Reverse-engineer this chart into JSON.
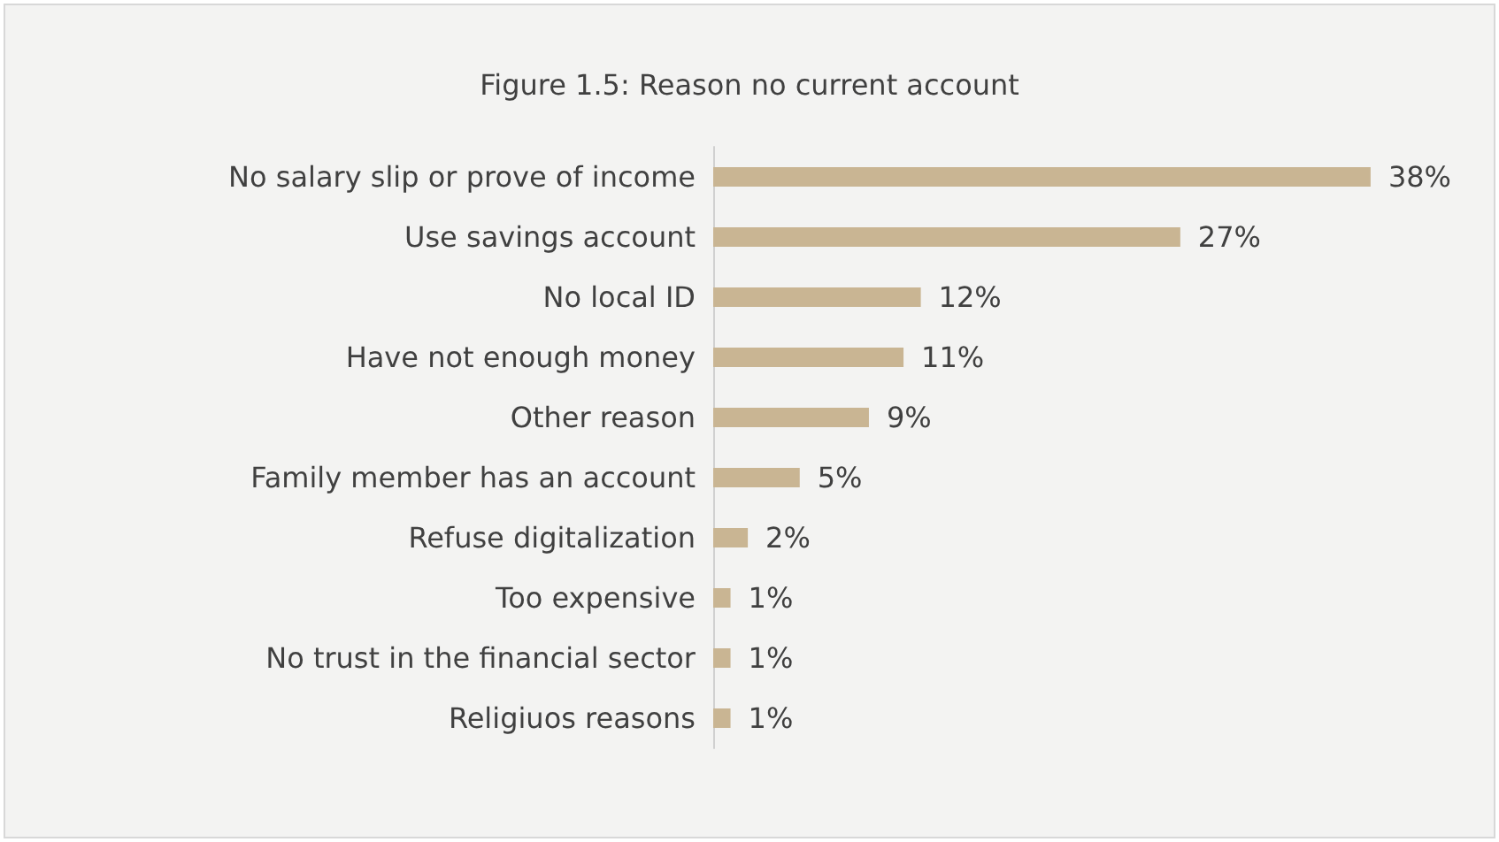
{
  "chart_data": {
    "type": "bar",
    "orientation": "horizontal",
    "title": "Figure 1.5: Reason no current account",
    "categories": [
      "No salary slip or prove of income",
      "Use savings account",
      "No local ID",
      "Have not enough money",
      "Other reason",
      "Family member has an account",
      "Refuse digitalization",
      "Too expensive",
      "No trust in the financial sector",
      "Religiuos reasons"
    ],
    "values": [
      38,
      27,
      12,
      11,
      9,
      5,
      2,
      1,
      1,
      1
    ],
    "value_labels": [
      "38%",
      "27%",
      "12%",
      "11%",
      "9%",
      "5%",
      "2%",
      "1%",
      "1%",
      "1%"
    ],
    "color": "#c9b593"
  }
}
